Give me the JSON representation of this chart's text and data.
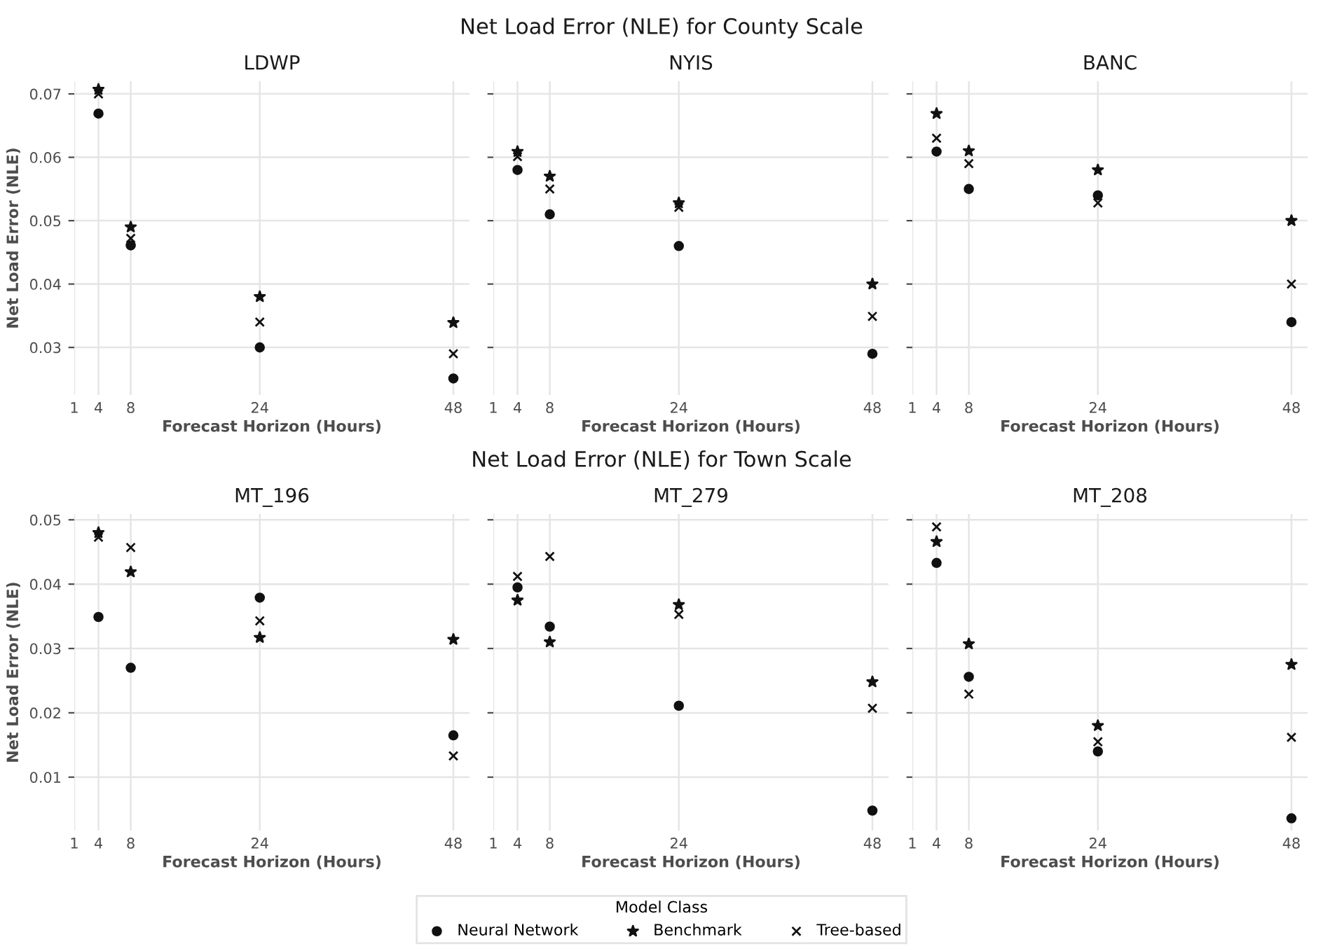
{
  "chart_data": [
    {
      "type": "scatter",
      "title": "LDWP",
      "annotations": [
        "Net Load Error (NLE) for County Scale"
      ],
      "xlabel": "Forecast Horizon (Hours)",
      "ylabel": "Net Load Error (NLE)",
      "xlim": [
        1,
        50
      ],
      "xticks": [
        1,
        4,
        8,
        24,
        48
      ],
      "ylim": [
        0.0225,
        0.072
      ],
      "yticks": [
        0.03,
        0.04,
        0.05,
        0.06,
        0.07
      ],
      "grid": true,
      "legend": "bottom",
      "legend_title": "Model Class",
      "x": [
        4,
        8,
        24,
        48
      ],
      "series": [
        {
          "name": "Neural Network",
          "color": "#111111",
          "marker": "circle",
          "values": [
            0.0669,
            0.0461,
            0.03,
            0.0251
          ]
        },
        {
          "name": "Benchmark",
          "color": "#111111",
          "marker": "star",
          "values": [
            0.0707,
            0.049,
            0.038,
            0.0339
          ]
        },
        {
          "name": "Tree-based",
          "color": "#111111",
          "marker": "cross",
          "values": [
            0.07,
            0.0472,
            0.034,
            0.029
          ]
        }
      ]
    },
    {
      "type": "scatter",
      "title": "NYIS",
      "xlabel": "Forecast Horizon (Hours)",
      "xlim": [
        1,
        50
      ],
      "xticks": [
        1,
        4,
        8,
        24,
        48
      ],
      "ylim": [
        0.0225,
        0.072
      ],
      "yticks": [
        0.03,
        0.04,
        0.05,
        0.06,
        0.07
      ],
      "grid": true,
      "tick_labels": "x",
      "x": [
        4,
        8,
        24,
        48
      ],
      "series": [
        {
          "color": "#111111",
          "marker": "circle",
          "values": [
            0.058,
            0.051,
            0.046,
            0.029
          ]
        },
        {
          "color": "#111111",
          "marker": "star",
          "values": [
            0.0609,
            0.057,
            0.0528,
            0.04
          ]
        },
        {
          "color": "#111111",
          "marker": "cross",
          "values": [
            0.0601,
            0.055,
            0.0521,
            0.0349
          ]
        }
      ]
    },
    {
      "type": "scatter",
      "title": "BANC",
      "xlabel": "Forecast Horizon (Hours)",
      "xlim": [
        1,
        50
      ],
      "xticks": [
        1,
        4,
        8,
        24,
        48
      ],
      "ylim": [
        0.0225,
        0.072
      ],
      "yticks": [
        0.03,
        0.04,
        0.05,
        0.06,
        0.07
      ],
      "grid": true,
      "tick_labels": "x",
      "x": [
        4,
        8,
        24,
        48
      ],
      "series": [
        {
          "color": "#111111",
          "marker": "circle",
          "values": [
            0.0609,
            0.055,
            0.054,
            0.034
          ]
        },
        {
          "color": "#111111",
          "marker": "star",
          "values": [
            0.0669,
            0.061,
            0.058,
            0.05
          ]
        },
        {
          "color": "#111111",
          "marker": "cross",
          "values": [
            0.063,
            0.059,
            0.0528,
            0.04
          ]
        }
      ]
    },
    {
      "type": "scatter",
      "title": "MT_196",
      "annotations": [
        "Net Load Error (NLE) for Town Scale"
      ],
      "xlabel": "Forecast Horizon (Hours)",
      "ylabel": "Net Load Error (NLE)",
      "xlim": [
        1,
        50
      ],
      "xticks": [
        1,
        4,
        8,
        24,
        48
      ],
      "ylim": [
        0.0017,
        0.0509
      ],
      "yticks": [
        0.01,
        0.02,
        0.03,
        0.04,
        0.05
      ],
      "grid": true,
      "x": [
        4,
        8,
        24,
        48
      ],
      "series": [
        {
          "color": "#111111",
          "marker": "circle",
          "values": [
            0.0349,
            0.027,
            0.0379,
            0.0165
          ]
        },
        {
          "color": "#111111",
          "marker": "star",
          "values": [
            0.048,
            0.0419,
            0.0317,
            0.0314
          ]
        },
        {
          "color": "#111111",
          "marker": "cross",
          "values": [
            0.0473,
            0.0457,
            0.0343,
            0.0133
          ]
        }
      ]
    },
    {
      "type": "scatter",
      "title": "MT_279",
      "xlabel": "Forecast Horizon (Hours)",
      "xlim": [
        1,
        50
      ],
      "xticks": [
        1,
        4,
        8,
        24,
        48
      ],
      "ylim": [
        0.0017,
        0.0509
      ],
      "yticks": [
        0.01,
        0.02,
        0.03,
        0.04,
        0.05
      ],
      "grid": true,
      "tick_labels": "x",
      "x": [
        4,
        8,
        24,
        48
      ],
      "series": [
        {
          "color": "#111111",
          "marker": "circle",
          "values": [
            0.0395,
            0.0334,
            0.0211,
            0.0048
          ]
        },
        {
          "color": "#111111",
          "marker": "star",
          "values": [
            0.0375,
            0.031,
            0.0368,
            0.0248
          ]
        },
        {
          "color": "#111111",
          "marker": "cross",
          "values": [
            0.0412,
            0.0443,
            0.0353,
            0.0207
          ]
        }
      ]
    },
    {
      "type": "scatter",
      "title": "MT_208",
      "xlabel": "Forecast Horizon (Hours)",
      "xlim": [
        1,
        50
      ],
      "xticks": [
        1,
        4,
        8,
        24,
        48
      ],
      "ylim": [
        0.0017,
        0.0509
      ],
      "yticks": [
        0.01,
        0.02,
        0.03,
        0.04,
        0.05
      ],
      "grid": true,
      "tick_labels": "x",
      "x": [
        4,
        8,
        24,
        48
      ],
      "series": [
        {
          "color": "#111111",
          "marker": "circle",
          "values": [
            0.0433,
            0.0256,
            0.014,
            0.0036
          ]
        },
        {
          "color": "#111111",
          "marker": "star",
          "values": [
            0.0466,
            0.0307,
            0.018,
            0.0275
          ]
        },
        {
          "color": "#111111",
          "marker": "cross",
          "values": [
            0.0489,
            0.0229,
            0.0155,
            0.0162
          ]
        }
      ]
    }
  ]
}
